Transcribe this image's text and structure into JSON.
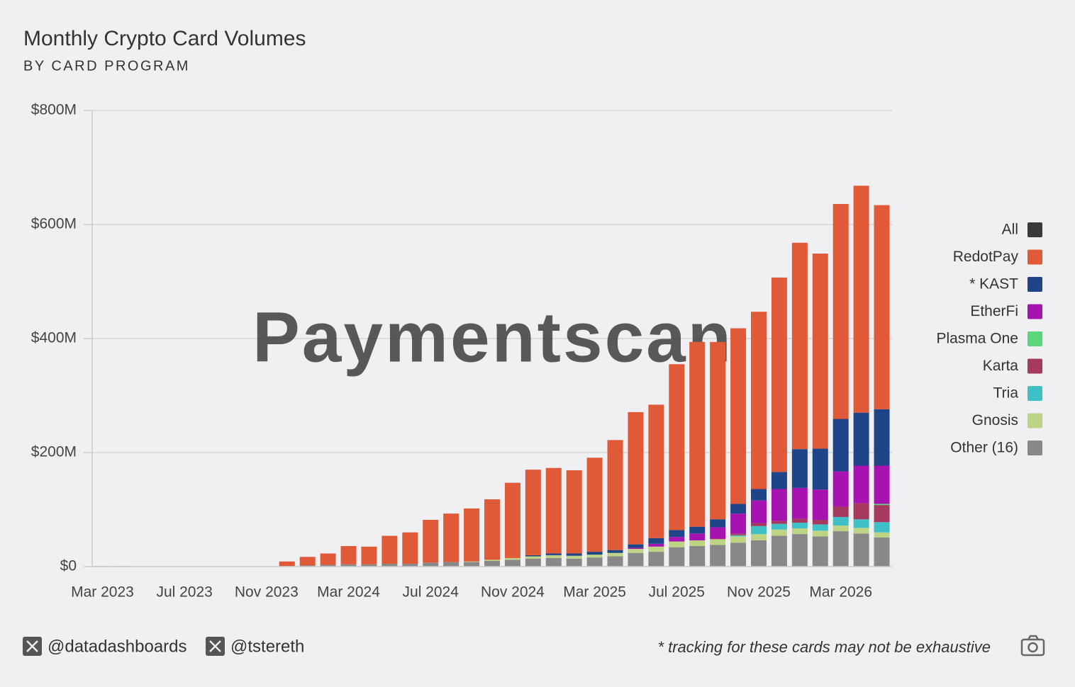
{
  "chart_data": {
    "type": "stacked_bar",
    "title": "Monthly Crypto Card Volumes",
    "subtitle": "BY CARD PROGRAM",
    "watermark": "Paymentscan",
    "categories": [
      "Mar 2023",
      null,
      null,
      null,
      "Jul 2023",
      null,
      null,
      null,
      "Nov 2023",
      null,
      null,
      null,
      "Mar 2024",
      null,
      null,
      null,
      "Jul 2024",
      null,
      null,
      null,
      "Nov 2024",
      null,
      null,
      null,
      "Mar 2025",
      null,
      null,
      null,
      "Jul 2025",
      null,
      null,
      null,
      "Nov 2025",
      null,
      null,
      null,
      "Mar 2026",
      null,
      null
    ],
    "ylim": [
      0,
      800
    ],
    "yticks": [
      {
        "value": 0,
        "label": "$0"
      },
      {
        "value": 200,
        "label": "$200M"
      },
      {
        "value": 400,
        "label": "$400M"
      },
      {
        "value": 600,
        "label": "$600M"
      },
      {
        "value": 800,
        "label": "$800M"
      }
    ],
    "grid": true,
    "legend": "right",
    "series": [
      {
        "name": "All",
        "color": "#3a3a3a",
        "values": [
          null,
          null,
          null,
          null,
          null,
          null,
          null,
          null,
          null,
          null,
          null,
          null,
          null,
          null,
          null,
          null,
          null,
          null,
          null,
          null,
          null,
          null,
          null,
          null,
          null,
          null,
          null,
          null,
          null,
          null,
          null,
          null,
          null,
          null,
          null,
          null,
          null,
          null,
          null
        ]
      },
      {
        "name": "RedotPay",
        "color": "#e05a38",
        "values": [
          0,
          0,
          0,
          0,
          0,
          0,
          0,
          0,
          0,
          8,
          15,
          20,
          32,
          31,
          49,
          55,
          75,
          85,
          93,
          106,
          132,
          150,
          150,
          146,
          165,
          193,
          232,
          234,
          291,
          324,
          311,
          308,
          311,
          341,
          362,
          342,
          377,
          398,
          358
        ]
      },
      {
        "name": "* KAST",
        "color": "#1f4589",
        "values": [
          0,
          0,
          0,
          0,
          0,
          0,
          0,
          0,
          0,
          0,
          0,
          0,
          0,
          0,
          0,
          0,
          0,
          0,
          0,
          0,
          0,
          2,
          3,
          4,
          5,
          5,
          6,
          10,
          12,
          12,
          14,
          17,
          20,
          30,
          68,
          72,
          92,
          93,
          99
        ]
      },
      {
        "name": "EtherFi",
        "color": "#a613b0",
        "values": [
          0,
          0,
          0,
          0,
          0,
          0,
          0,
          0,
          0,
          0,
          0,
          0,
          0,
          0,
          0,
          0,
          0,
          0,
          0,
          0,
          0,
          0,
          0,
          0,
          0,
          0,
          2,
          5,
          8,
          12,
          20,
          35,
          40,
          56,
          54,
          53,
          62,
          66,
          67
        ]
      },
      {
        "name": "Plasma One",
        "color": "#5cd67a",
        "values": [
          0,
          0,
          0,
          0,
          0,
          0,
          0,
          0,
          0,
          0,
          0,
          0,
          0,
          0,
          0,
          0,
          0,
          0,
          0,
          0,
          0,
          0,
          0,
          0,
          0,
          0,
          0,
          0,
          0,
          0,
          0,
          0,
          0,
          0,
          0,
          0,
          0,
          0,
          2
        ]
      },
      {
        "name": "Karta",
        "color": "#a63a5e",
        "values": [
          0,
          0,
          0,
          0,
          0,
          0,
          0,
          0,
          0,
          0,
          0,
          0,
          0,
          0,
          0,
          0,
          0,
          0,
          0,
          0,
          0,
          0,
          0,
          0,
          0,
          0,
          0,
          0,
          0,
          0,
          1,
          3,
          5,
          5,
          7,
          8,
          18,
          28,
          30
        ]
      },
      {
        "name": "Tria",
        "color": "#3fbfc6",
        "values": [
          0,
          0,
          0,
          0,
          0,
          0,
          0,
          0,
          0,
          0,
          0,
          0,
          0,
          0,
          0,
          0,
          0,
          0,
          0,
          0,
          0,
          0,
          0,
          0,
          0,
          0,
          0,
          0,
          0,
          0,
          0,
          2,
          14,
          10,
          10,
          11,
          15,
          15,
          18
        ]
      },
      {
        "name": "Gnosis",
        "color": "#bcd484",
        "values": [
          0,
          0,
          0,
          0,
          0,
          0,
          0,
          0,
          0,
          0,
          0,
          0,
          0,
          0,
          0,
          0,
          0,
          0,
          1,
          2,
          3,
          4,
          5,
          5,
          5,
          6,
          7,
          9,
          10,
          10,
          10,
          11,
          11,
          11,
          10,
          10,
          10,
          10,
          9
        ]
      },
      {
        "name": "Other (16)",
        "color": "#888888",
        "values": [
          1,
          1,
          0.5,
          0.3,
          0.5,
          0.5,
          0.3,
          0.3,
          0.5,
          1,
          2,
          3,
          4,
          4,
          5,
          5,
          7,
          8,
          8,
          10,
          12,
          14,
          15,
          14,
          16,
          18,
          24,
          26,
          34,
          36,
          38,
          42,
          46,
          54,
          57,
          53,
          62,
          58,
          51
        ]
      }
    ]
  },
  "footer": {
    "handles": [
      "@datadashboards",
      "@tstereth"
    ],
    "note": "* tracking for these cards may not be exhaustive"
  }
}
